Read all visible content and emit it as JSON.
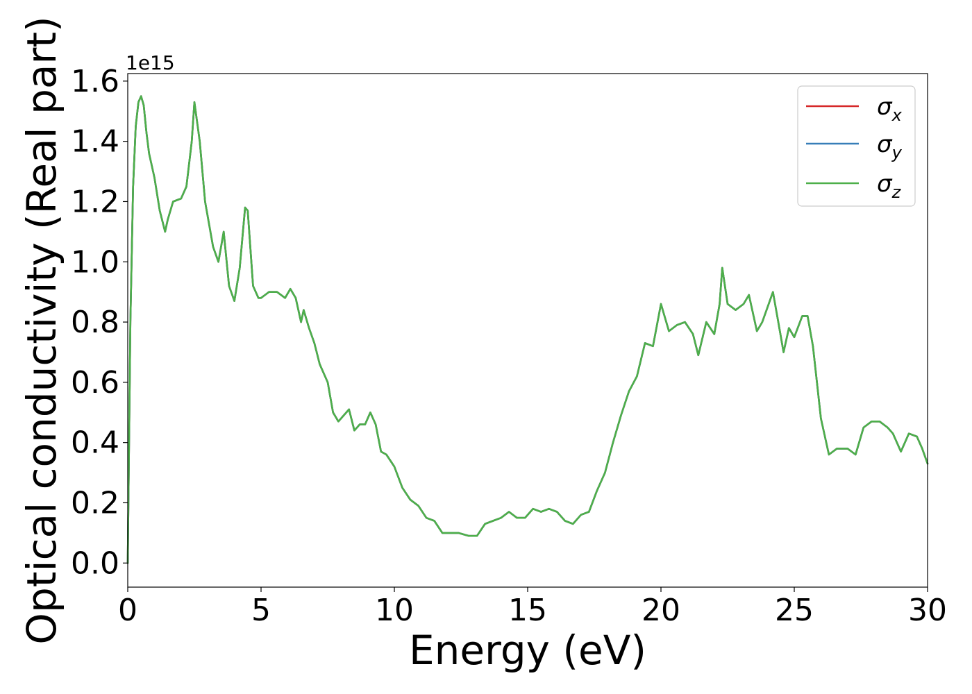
{
  "chart_data": {
    "type": "line",
    "xlabel": "Energy (eV)",
    "ylabel": "Optical conductivity (Real part)",
    "offset_label": "1e15",
    "xlim": [
      0,
      30
    ],
    "ylim": [
      -0.08,
      1.625
    ],
    "xticks": [
      0,
      5,
      10,
      15,
      20,
      25,
      30
    ],
    "yticks": [
      0.0,
      0.2,
      0.4,
      0.6,
      0.8,
      1.0,
      1.2,
      1.4,
      1.6
    ],
    "xtick_labels": [
      "0",
      "5",
      "10",
      "15",
      "20",
      "25",
      "30"
    ],
    "ytick_labels": [
      "0.0",
      "0.2",
      "0.4",
      "0.6",
      "0.8",
      "1.0",
      "1.2",
      "1.4",
      "1.6"
    ],
    "grid": false,
    "legend_position": "top-right",
    "x": [
      0,
      0.1,
      0.2,
      0.3,
      0.4,
      0.5,
      0.6,
      0.7,
      0.8,
      1.0,
      1.2,
      1.4,
      1.5,
      1.7,
      2.0,
      2.2,
      2.4,
      2.5,
      2.7,
      2.9,
      3.2,
      3.4,
      3.6,
      3.8,
      4.0,
      4.2,
      4.4,
      4.5,
      4.7,
      4.9,
      5.0,
      5.3,
      5.6,
      5.9,
      6.1,
      6.3,
      6.5,
      6.6,
      6.8,
      7.0,
      7.2,
      7.5,
      7.7,
      7.9,
      8.1,
      8.3,
      8.5,
      8.7,
      8.9,
      9.1,
      9.3,
      9.5,
      9.7,
      10.0,
      10.3,
      10.6,
      10.9,
      11.2,
      11.5,
      11.8,
      12.1,
      12.4,
      12.8,
      13.1,
      13.4,
      13.7,
      14.0,
      14.3,
      14.6,
      14.9,
      15.2,
      15.5,
      15.8,
      16.1,
      16.4,
      16.7,
      17.0,
      17.3,
      17.6,
      17.9,
      18.2,
      18.5,
      18.8,
      19.1,
      19.4,
      19.7,
      20.0,
      20.1,
      20.3,
      20.6,
      20.9,
      21.2,
      21.4,
      21.7,
      22.0,
      22.2,
      22.3,
      22.5,
      22.8,
      23.1,
      23.3,
      23.6,
      23.8,
      24.0,
      24.2,
      24.4,
      24.6,
      24.8,
      25.0,
      25.3,
      25.5,
      25.7,
      26.0,
      26.3,
      26.6,
      27.0,
      27.3,
      27.6,
      27.9,
      28.2,
      28.5,
      28.7,
      29.0,
      29.3,
      29.6,
      29.8,
      30.0
    ],
    "series": [
      {
        "name": "σx",
        "color": "#d62728",
        "values": [
          0.0,
          0.8,
          1.25,
          1.45,
          1.53,
          1.55,
          1.52,
          1.43,
          1.36,
          1.28,
          1.17,
          1.1,
          1.14,
          1.2,
          1.21,
          1.25,
          1.4,
          1.53,
          1.4,
          1.2,
          1.05,
          1.0,
          1.1,
          0.92,
          0.87,
          0.98,
          1.18,
          1.17,
          0.92,
          0.88,
          0.88,
          0.9,
          0.9,
          0.88,
          0.91,
          0.88,
          0.8,
          0.84,
          0.78,
          0.73,
          0.66,
          0.6,
          0.5,
          0.47,
          0.49,
          0.51,
          0.44,
          0.46,
          0.46,
          0.5,
          0.46,
          0.37,
          0.36,
          0.32,
          0.25,
          0.21,
          0.19,
          0.15,
          0.14,
          0.1,
          0.1,
          0.1,
          0.09,
          0.09,
          0.13,
          0.14,
          0.15,
          0.17,
          0.15,
          0.15,
          0.18,
          0.17,
          0.18,
          0.17,
          0.14,
          0.13,
          0.16,
          0.17,
          0.24,
          0.3,
          0.4,
          0.49,
          0.57,
          0.62,
          0.73,
          0.72,
          0.86,
          0.83,
          0.77,
          0.79,
          0.8,
          0.76,
          0.69,
          0.8,
          0.76,
          0.86,
          0.98,
          0.86,
          0.84,
          0.86,
          0.89,
          0.77,
          0.8,
          0.85,
          0.9,
          0.8,
          0.7,
          0.78,
          0.75,
          0.82,
          0.82,
          0.72,
          0.48,
          0.36,
          0.38,
          0.38,
          0.36,
          0.45,
          0.47,
          0.47,
          0.45,
          0.43,
          0.37,
          0.43,
          0.42,
          0.38,
          0.33
        ]
      },
      {
        "name": "σy",
        "color": "#377eb8",
        "values": [
          0.0,
          0.8,
          1.25,
          1.45,
          1.53,
          1.55,
          1.52,
          1.43,
          1.36,
          1.28,
          1.17,
          1.1,
          1.14,
          1.2,
          1.21,
          1.25,
          1.4,
          1.53,
          1.4,
          1.2,
          1.05,
          1.0,
          1.1,
          0.92,
          0.87,
          0.98,
          1.18,
          1.17,
          0.92,
          0.88,
          0.88,
          0.9,
          0.9,
          0.88,
          0.91,
          0.88,
          0.8,
          0.84,
          0.78,
          0.73,
          0.66,
          0.6,
          0.5,
          0.47,
          0.49,
          0.51,
          0.44,
          0.46,
          0.46,
          0.5,
          0.46,
          0.37,
          0.36,
          0.32,
          0.25,
          0.21,
          0.19,
          0.15,
          0.14,
          0.1,
          0.1,
          0.1,
          0.09,
          0.09,
          0.13,
          0.14,
          0.15,
          0.17,
          0.15,
          0.15,
          0.18,
          0.17,
          0.18,
          0.17,
          0.14,
          0.13,
          0.16,
          0.17,
          0.24,
          0.3,
          0.4,
          0.49,
          0.57,
          0.62,
          0.73,
          0.72,
          0.86,
          0.83,
          0.77,
          0.79,
          0.8,
          0.76,
          0.69,
          0.8,
          0.76,
          0.86,
          0.98,
          0.86,
          0.84,
          0.86,
          0.89,
          0.77,
          0.8,
          0.85,
          0.9,
          0.8,
          0.7,
          0.78,
          0.75,
          0.82,
          0.82,
          0.72,
          0.48,
          0.36,
          0.38,
          0.38,
          0.36,
          0.45,
          0.47,
          0.47,
          0.45,
          0.43,
          0.37,
          0.43,
          0.42,
          0.38,
          0.33
        ]
      },
      {
        "name": "σz",
        "color": "#4daf4a",
        "values": [
          0.0,
          0.8,
          1.25,
          1.45,
          1.53,
          1.55,
          1.52,
          1.43,
          1.36,
          1.28,
          1.17,
          1.1,
          1.14,
          1.2,
          1.21,
          1.25,
          1.4,
          1.53,
          1.4,
          1.2,
          1.05,
          1.0,
          1.1,
          0.92,
          0.87,
          0.98,
          1.18,
          1.17,
          0.92,
          0.88,
          0.88,
          0.9,
          0.9,
          0.88,
          0.91,
          0.88,
          0.8,
          0.84,
          0.78,
          0.73,
          0.66,
          0.6,
          0.5,
          0.47,
          0.49,
          0.51,
          0.44,
          0.46,
          0.46,
          0.5,
          0.46,
          0.37,
          0.36,
          0.32,
          0.25,
          0.21,
          0.19,
          0.15,
          0.14,
          0.1,
          0.1,
          0.1,
          0.09,
          0.09,
          0.13,
          0.14,
          0.15,
          0.17,
          0.15,
          0.15,
          0.18,
          0.17,
          0.18,
          0.17,
          0.14,
          0.13,
          0.16,
          0.17,
          0.24,
          0.3,
          0.4,
          0.49,
          0.57,
          0.62,
          0.73,
          0.72,
          0.86,
          0.83,
          0.77,
          0.79,
          0.8,
          0.76,
          0.69,
          0.8,
          0.76,
          0.86,
          0.98,
          0.86,
          0.84,
          0.86,
          0.89,
          0.77,
          0.8,
          0.85,
          0.9,
          0.8,
          0.7,
          0.78,
          0.75,
          0.82,
          0.82,
          0.72,
          0.48,
          0.36,
          0.38,
          0.38,
          0.36,
          0.45,
          0.47,
          0.47,
          0.45,
          0.43,
          0.37,
          0.43,
          0.42,
          0.38,
          0.33
        ]
      }
    ],
    "legend": [
      {
        "base": "σ",
        "sub": "x",
        "color": "#d62728"
      },
      {
        "base": "σ",
        "sub": "y",
        "color": "#377eb8"
      },
      {
        "base": "σ",
        "sub": "z",
        "color": "#4daf4a"
      }
    ]
  }
}
